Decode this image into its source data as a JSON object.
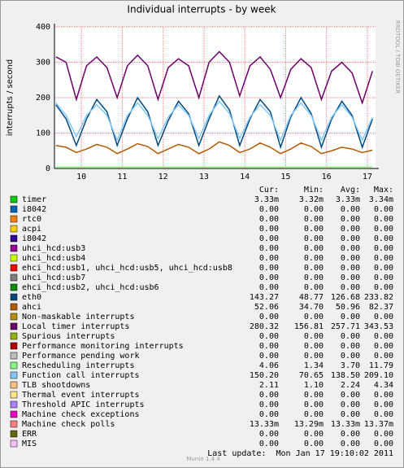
{
  "chart_data": {
    "type": "line",
    "title": "Individual interrupts - by week",
    "y_label": "interrupts / second",
    "credit": "RRDTOOL / TOBI OETIKER",
    "version": "Munin 1.4.4",
    "last_update": "Last update:  Mon Jan 17 19:10:02 2011",
    "xlim": [
      9.34,
      17.2
    ],
    "xticks": [
      10,
      11,
      12,
      13,
      14,
      15,
      16,
      17
    ],
    "ylim": [
      0,
      400
    ],
    "yticks": [
      0,
      100,
      200,
      300,
      400
    ],
    "grid": true,
    "x": [
      9.375,
      9.625,
      9.875,
      10.125,
      10.375,
      10.625,
      10.875,
      11.125,
      11.375,
      11.625,
      11.875,
      12.125,
      12.375,
      12.625,
      12.875,
      13.125,
      13.375,
      13.625,
      13.875,
      14.125,
      14.375,
      14.625,
      14.875,
      15.125,
      15.375,
      15.625,
      15.875,
      16.125,
      16.375,
      16.625,
      16.875,
      17.125
    ],
    "stat_headers": [
      "Cur:",
      "Min:",
      "Avg:",
      "Max:"
    ],
    "series": [
      {
        "name": "timer",
        "color": "#00cc00",
        "stats": [
          "3.33m",
          "3.32m",
          "3.33m",
          "3.34m"
        ]
      },
      {
        "name": "i8042",
        "color": "#0066b3",
        "stats": [
          "0.00",
          "0.00",
          "0.00",
          "0.00"
        ]
      },
      {
        "name": "rtc0",
        "color": "#ff8000",
        "stats": [
          "0.00",
          "0.00",
          "0.00",
          "0.00"
        ]
      },
      {
        "name": "acpi",
        "color": "#ffcc00",
        "stats": [
          "0.00",
          "0.00",
          "0.00",
          "0.00"
        ]
      },
      {
        "name": "i8042",
        "color": "#330099",
        "stats": [
          "0.00",
          "0.00",
          "0.00",
          "0.00"
        ]
      },
      {
        "name": "uhci_hcd:usb3",
        "color": "#990099",
        "stats": [
          "0.00",
          "0.00",
          "0.00",
          "0.00"
        ]
      },
      {
        "name": "uhci_hcd:usb4",
        "color": "#ccff00",
        "stats": [
          "0.00",
          "0.00",
          "0.00",
          "0.00"
        ]
      },
      {
        "name": "ehci_hcd:usb1, uhci_hcd:usb5, uhci_hcd:usb8",
        "color": "#ff0000",
        "stats": [
          "0.00",
          "0.00",
          "0.00",
          "0.00"
        ]
      },
      {
        "name": "uhci_hcd:usb7",
        "color": "#808080",
        "stats": [
          "0.00",
          "0.00",
          "0.00",
          "0.00"
        ]
      },
      {
        "name": "ehci_hcd:usb2, uhci_hcd:usb6",
        "color": "#008f00",
        "stats": [
          "0.00",
          "0.00",
          "0.00",
          "0.00"
        ]
      },
      {
        "name": "eth0",
        "color": "#00487d",
        "stats": [
          "143.27",
          "48.77",
          "126.68",
          "233.82"
        ],
        "values": [
          180,
          140,
          65,
          140,
          195,
          160,
          65,
          140,
          200,
          160,
          65,
          135,
          190,
          155,
          65,
          140,
          205,
          165,
          65,
          140,
          195,
          160,
          60,
          145,
          200,
          155,
          60,
          140,
          190,
          150,
          60,
          140
        ]
      },
      {
        "name": "ahci",
        "color": "#b35a00",
        "stats": [
          "52.06",
          "34.70",
          "50.96",
          "82.37"
        ],
        "values": [
          65,
          60,
          45,
          55,
          68,
          60,
          42,
          55,
          70,
          62,
          42,
          55,
          68,
          60,
          42,
          55,
          75,
          65,
          45,
          55,
          72,
          60,
          42,
          55,
          72,
          62,
          42,
          50,
          60,
          55,
          45,
          52
        ]
      },
      {
        "name": "Non-maskable interrupts",
        "color": "#b38f00",
        "stats": [
          "0.00",
          "0.00",
          "0.00",
          "0.00"
        ]
      },
      {
        "name": "Local timer interrupts",
        "color": "#6b006b",
        "stats": [
          "280.32",
          "156.81",
          "257.71",
          "343.53"
        ],
        "values": [
          315,
          300,
          195,
          290,
          315,
          285,
          200,
          290,
          320,
          290,
          195,
          285,
          310,
          290,
          200,
          300,
          330,
          300,
          205,
          290,
          315,
          280,
          200,
          280,
          310,
          285,
          195,
          275,
          300,
          270,
          185,
          275
        ]
      },
      {
        "name": "Spurious interrupts",
        "color": "#8fb300",
        "stats": [
          "0.00",
          "0.00",
          "0.00",
          "0.00"
        ]
      },
      {
        "name": "Performance monitoring interrupts",
        "color": "#b30000",
        "stats": [
          "0.00",
          "0.00",
          "0.00",
          "0.00"
        ]
      },
      {
        "name": "Performance pending work",
        "color": "#bebebe",
        "stats": [
          "0.00",
          "0.00",
          "0.00",
          "0.00"
        ]
      },
      {
        "name": "Rescheduling interrupts",
        "color": "#80ff80",
        "stats": [
          "4.06",
          "1.34",
          "3.70",
          "11.79"
        ],
        "values": [
          4,
          4,
          4,
          4,
          4,
          4,
          4,
          4,
          4,
          4,
          4,
          4,
          4,
          4,
          4,
          4,
          4,
          4,
          4,
          4,
          4,
          4,
          4,
          4,
          4,
          4,
          4,
          4,
          4,
          4,
          4,
          4
        ]
      },
      {
        "name": "Function call interrupts",
        "color": "#80c9ff",
        "stats": [
          "150.20",
          "70.65",
          "138.50",
          "209.10"
        ],
        "values": [
          185,
          150,
          90,
          150,
          180,
          150,
          80,
          150,
          185,
          150,
          85,
          145,
          180,
          150,
          85,
          150,
          190,
          155,
          85,
          145,
          180,
          150,
          80,
          150,
          185,
          150,
          80,
          145,
          180,
          145,
          80,
          145
        ]
      },
      {
        "name": "TLB shootdowns",
        "color": "#ffc080",
        "stats": [
          "2.11",
          "1.10",
          "2.24",
          "4.34"
        ]
      },
      {
        "name": "Thermal event interrupts",
        "color": "#ffe680",
        "stats": [
          "0.00",
          "0.00",
          "0.00",
          "0.00"
        ]
      },
      {
        "name": "Threshold APIC interrupts",
        "color": "#aa80ff",
        "stats": [
          "0.00",
          "0.00",
          "0.00",
          "0.00"
        ]
      },
      {
        "name": "Machine check exceptions",
        "color": "#ee00cc",
        "stats": [
          "0.00",
          "0.00",
          "0.00",
          "0.00"
        ]
      },
      {
        "name": "Machine check polls",
        "color": "#ff8080",
        "stats": [
          "13.33m",
          "13.29m",
          "13.33m",
          "13.37m"
        ]
      },
      {
        "name": "ERR",
        "color": "#666600",
        "stats": [
          "0.00",
          "0.00",
          "0.00",
          "0.00"
        ]
      },
      {
        "name": "MIS",
        "color": "#ffbfff",
        "stats": [
          "0.00",
          "0.00",
          "0.00",
          "0.00"
        ]
      }
    ]
  }
}
